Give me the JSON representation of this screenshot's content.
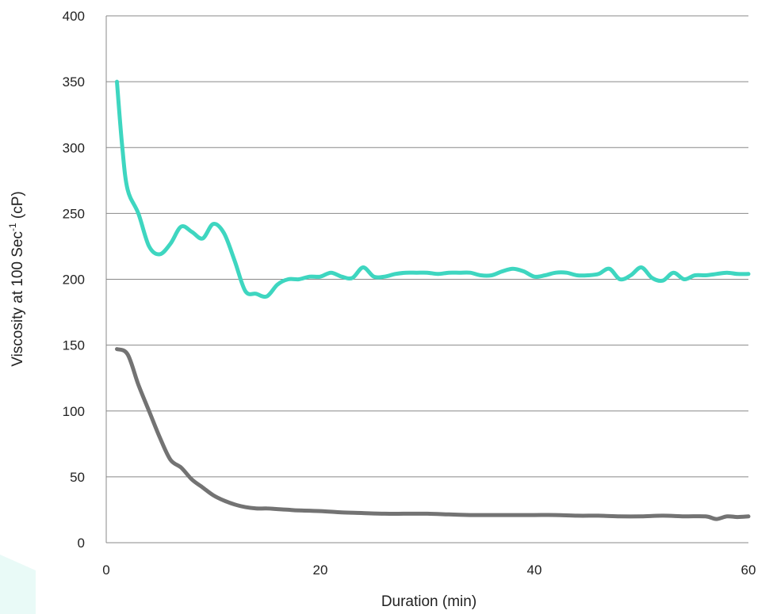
{
  "chart_data": {
    "type": "line",
    "title": "",
    "xlabel": "Duration (min)",
    "ylabel": {
      "prefix": "Viscosity at 100 Sec",
      "superscript": "-1",
      "suffix": " (cP)"
    },
    "xlim": [
      0,
      60
    ],
    "ylim": [
      0,
      400
    ],
    "xticks": [
      "0",
      "20",
      "40",
      "60"
    ],
    "yticks": [
      "0",
      "50",
      "100",
      "150",
      "200",
      "250",
      "300",
      "350",
      "400"
    ],
    "grid": "horizontal",
    "legend": "none",
    "colors": {
      "background_shape": "#e9faf7"
    },
    "series": [
      {
        "color": "#3ed6c0",
        "x": [
          1,
          1.5,
          2,
          3,
          4,
          5,
          6,
          7,
          8,
          9,
          10,
          11,
          12,
          13,
          14,
          15,
          16,
          17,
          18,
          19,
          20,
          21,
          22,
          23,
          24,
          25,
          26,
          27,
          28,
          29,
          30,
          31,
          32,
          33,
          34,
          35,
          36,
          37,
          38,
          39,
          40,
          41,
          42,
          43,
          44,
          45,
          46,
          47,
          48,
          49,
          50,
          51,
          52,
          53,
          54,
          55,
          56,
          57,
          58,
          59,
          60
        ],
        "y": [
          350,
          300,
          268,
          250,
          225,
          219,
          227,
          240,
          236,
          231,
          242,
          235,
          214,
          191,
          189,
          187,
          196,
          200,
          200,
          202,
          202,
          205,
          202,
          201,
          209,
          202,
          202,
          204,
          205,
          205,
          205,
          204,
          205,
          205,
          205,
          203,
          203,
          206,
          208,
          206,
          202,
          203,
          205,
          205,
          203,
          203,
          204,
          208,
          200,
          203,
          209,
          201,
          199,
          205,
          200,
          203,
          203,
          204,
          205,
          204,
          204
        ]
      },
      {
        "color": "#737373",
        "x": [
          1,
          2,
          3,
          4,
          5,
          6,
          7,
          8,
          9,
          10,
          11,
          12,
          13,
          14,
          15,
          16,
          17,
          18,
          20,
          22,
          24,
          26,
          28,
          30,
          32,
          34,
          36,
          38,
          40,
          42,
          44,
          46,
          48,
          50,
          52,
          54,
          56,
          57,
          58,
          59,
          60
        ],
        "y": [
          147,
          143,
          120,
          100,
          80,
          63,
          57,
          48,
          42,
          36,
          32,
          29,
          27,
          26,
          26,
          25.5,
          25,
          24.5,
          24,
          23,
          22.5,
          22,
          22,
          22,
          21.5,
          21,
          21,
          21,
          21,
          21,
          20.5,
          20.5,
          20,
          20,
          20.5,
          20,
          20,
          18,
          20,
          19.5,
          20
        ]
      }
    ]
  }
}
